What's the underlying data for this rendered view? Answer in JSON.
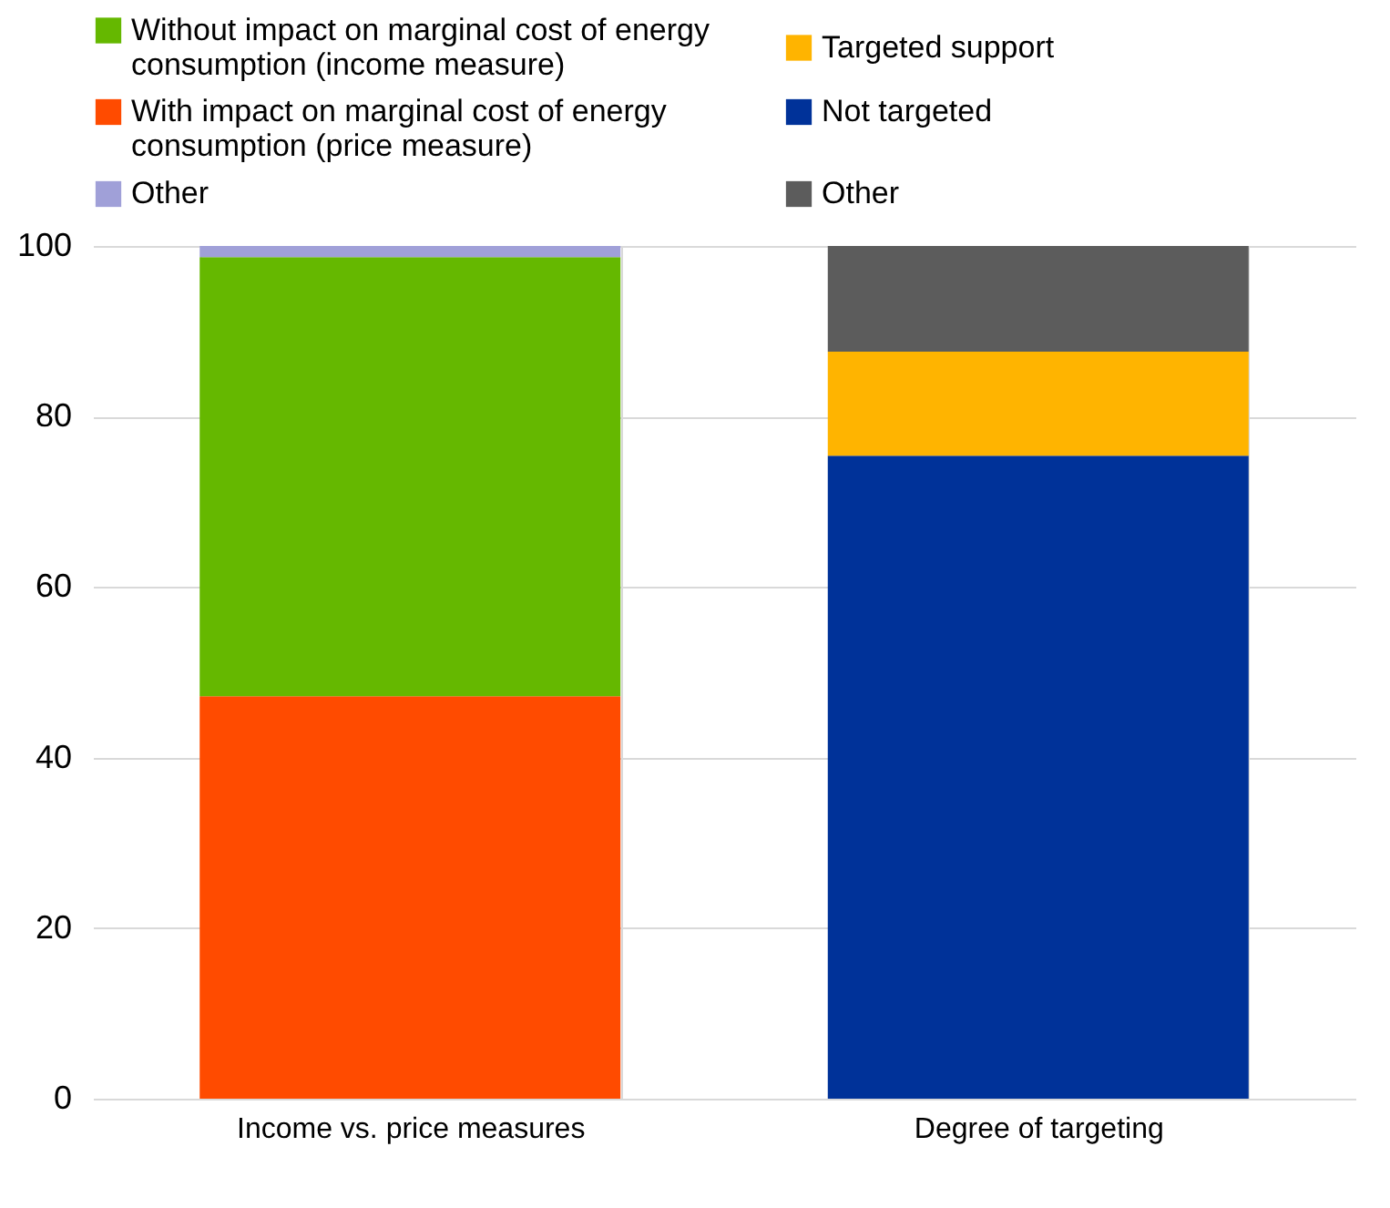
{
  "chart_data": {
    "type": "bar",
    "stacked": true,
    "categories": [
      "Income vs. price measures",
      "Degree of targeting"
    ],
    "series": [
      {
        "name": "With impact on marginal cost of energy consumption (price measure)",
        "color": "#ff4b00",
        "values": [
          47.2,
          null
        ]
      },
      {
        "name": "Without impact on marginal cost of energy consumption (income measure)",
        "color": "#65b800",
        "values": [
          51.5,
          null
        ]
      },
      {
        "name": "Other",
        "color": "#a0a0d8",
        "values": [
          1.3,
          null
        ]
      },
      {
        "name": "Not targeted",
        "color": "#003299",
        "values": [
          null,
          75.4
        ]
      },
      {
        "name": "Targeted support",
        "color": "#ffb400",
        "values": [
          null,
          12.2
        ]
      },
      {
        "name": "Other",
        "color": "#5c5c5c",
        "values": [
          null,
          12.4
        ]
      }
    ],
    "ylim": [
      0,
      100
    ],
    "yticks": [
      0,
      20,
      40,
      60,
      80,
      100
    ],
    "grid": true,
    "legend": "top"
  }
}
